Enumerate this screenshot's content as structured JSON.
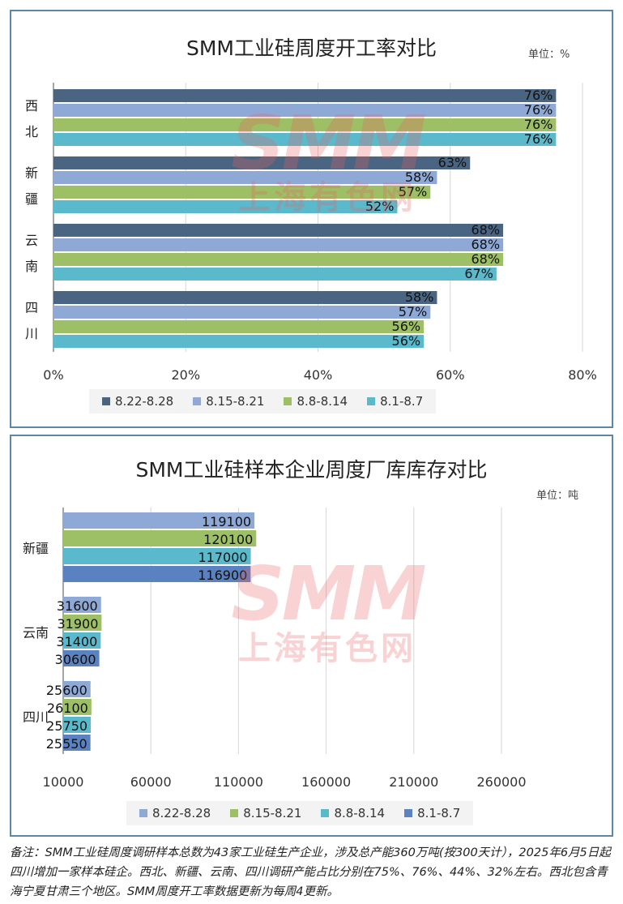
{
  "footnote": "备注：SMM工业硅周度调研样本总数为43家工业硅生产企业，涉及总产能360万吨(按300天计），2025年6月5日起四川增加一家样本硅企。西北、新疆、云南、四川调研产能占比分别在75%、76%、44%、32%左右。西北包含青海宁夏甘肃三个地区。SMM周度开工率数据更新为每周4更新。",
  "watermark": {
    "logo": "SMM",
    "name": "上海有色网"
  },
  "chart_data": [
    {
      "type": "bar",
      "orientation": "horizontal",
      "title": "SMM工业硅周度开工率对比",
      "unit_label": "单位：%",
      "categories": [
        "西北",
        "新疆",
        "云南",
        "四川"
      ],
      "x_ticks": [
        "0%",
        "20%",
        "40%",
        "60%",
        "80%"
      ],
      "xlim": [
        0,
        80
      ],
      "grid": true,
      "legend_position": "bottom",
      "series": [
        {
          "name": "8.22-8.28",
          "color": "#4a6582",
          "values": [
            76,
            63,
            68,
            58
          ],
          "labels": [
            "76%",
            "63%",
            "68%",
            "58%"
          ]
        },
        {
          "name": "8.15-8.21",
          "color": "#8ea9d6",
          "values": [
            76,
            58,
            68,
            57
          ],
          "labels": [
            "76%",
            "58%",
            "68%",
            "57%"
          ]
        },
        {
          "name": "8.8-8.14",
          "color": "#9dbf66",
          "values": [
            76,
            57,
            68,
            56
          ],
          "labels": [
            "76%",
            "57%",
            "68%",
            "56%"
          ]
        },
        {
          "name": "8.1-8.7",
          "color": "#5bb9cc",
          "values": [
            76,
            52,
            67,
            56
          ],
          "labels": [
            "76%",
            "52%",
            "67%",
            "56%"
          ]
        }
      ]
    },
    {
      "type": "bar",
      "orientation": "horizontal",
      "title": "SMM工业硅样本企业周度厂库库存对比",
      "unit_label": "单位：吨",
      "categories": [
        "新疆",
        "云南",
        "四川"
      ],
      "x_ticks": [
        "10000",
        "60000",
        "110000",
        "160000",
        "210000",
        "260000"
      ],
      "xlim": [
        10000,
        260000
      ],
      "grid": true,
      "legend_position": "bottom",
      "series": [
        {
          "name": "8.22-8.28",
          "color": "#8ea9d6",
          "values": [
            119100,
            31600,
            25600
          ],
          "labels": [
            "119100",
            "31600",
            "25600"
          ]
        },
        {
          "name": "8.15-8.21",
          "color": "#9dbf66",
          "values": [
            120100,
            31900,
            26100
          ],
          "labels": [
            "120100",
            "31900",
            "26100"
          ]
        },
        {
          "name": "8.8-8.14",
          "color": "#5bb9cc",
          "values": [
            117000,
            31400,
            25750
          ],
          "labels": [
            "117000",
            "31400",
            "25750"
          ]
        },
        {
          "name": "8.1-8.7",
          "color": "#5a82c0",
          "values": [
            116900,
            30600,
            25550
          ],
          "labels": [
            "116900",
            "30600",
            "25550"
          ]
        }
      ]
    }
  ]
}
